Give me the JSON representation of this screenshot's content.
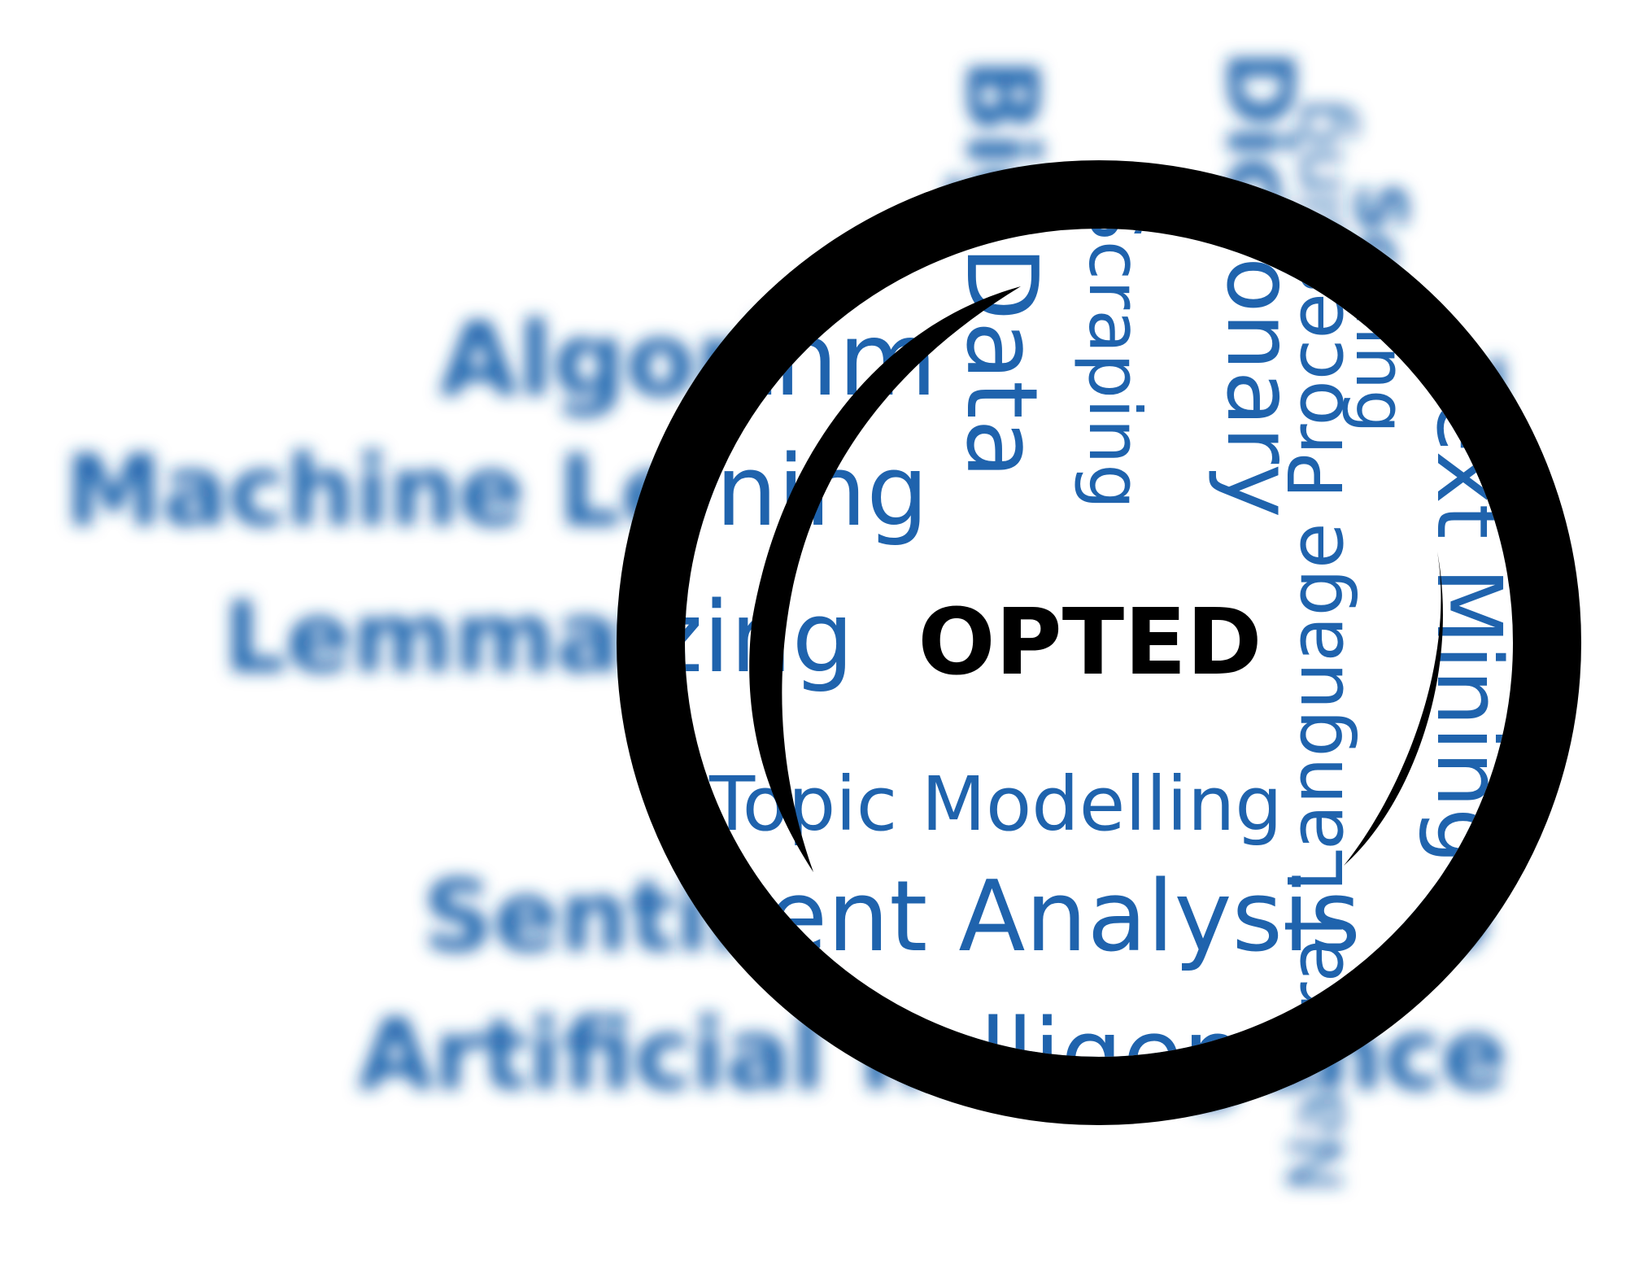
{
  "logo": {
    "text": "OPTED"
  },
  "colors": {
    "words": "#1f63ad",
    "ring": "#000000",
    "background": "#ffffff"
  },
  "magnifier_icon": "magnifying-glass-ring-icon",
  "words": {
    "algorithm": "Algorithm",
    "machine_learning": "Machine Learning",
    "lemmatizing": "Lemmatizing",
    "sentiment_analysis": "Sentiment Analysis",
    "artificial_intelligence": "Artificial Intelligence",
    "topic_modelling": "Topic Modelling",
    "big_data": "Big Data",
    "web_scraping": "Web Scraping",
    "dictionary": "Dictionary",
    "natural_language_processing": "Natural Language Processing",
    "text_mining": "Text Mining",
    "scaling": "Scaling"
  }
}
